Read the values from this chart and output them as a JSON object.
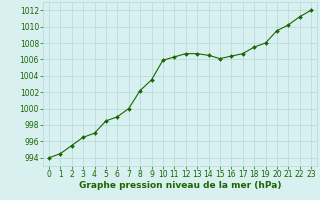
{
  "x": [
    0,
    1,
    2,
    3,
    4,
    5,
    6,
    7,
    8,
    9,
    10,
    11,
    12,
    13,
    14,
    15,
    16,
    17,
    18,
    19,
    20,
    21,
    22,
    23
  ],
  "y": [
    994.0,
    994.5,
    995.5,
    996.5,
    997.0,
    998.5,
    999.0,
    1000.0,
    1002.2,
    1003.5,
    1005.9,
    1006.3,
    1006.7,
    1006.7,
    1006.5,
    1006.1,
    1006.4,
    1006.7,
    1007.5,
    1008.0,
    1009.5,
    1010.2,
    1011.2,
    1012.0
  ],
  "line_color": "#1a6600",
  "marker": "D",
  "marker_size": 2.0,
  "bg_color": "#d8f0f0",
  "grid_color": "#b0d8d8",
  "xlabel": "Graphe pression niveau de la mer (hPa)",
  "ylim": [
    993,
    1013
  ],
  "xlim": [
    -0.5,
    23.5
  ],
  "yticks": [
    994,
    996,
    998,
    1000,
    1002,
    1004,
    1006,
    1008,
    1010,
    1012
  ],
  "xticks": [
    0,
    1,
    2,
    3,
    4,
    5,
    6,
    7,
    8,
    9,
    10,
    11,
    12,
    13,
    14,
    15,
    16,
    17,
    18,
    19,
    20,
    21,
    22,
    23
  ],
  "tick_fontsize": 5.5,
  "xlabel_fontsize": 6.5,
  "tick_color": "#1a6600",
  "xlabel_color": "#1a6600",
  "linewidth": 0.8
}
